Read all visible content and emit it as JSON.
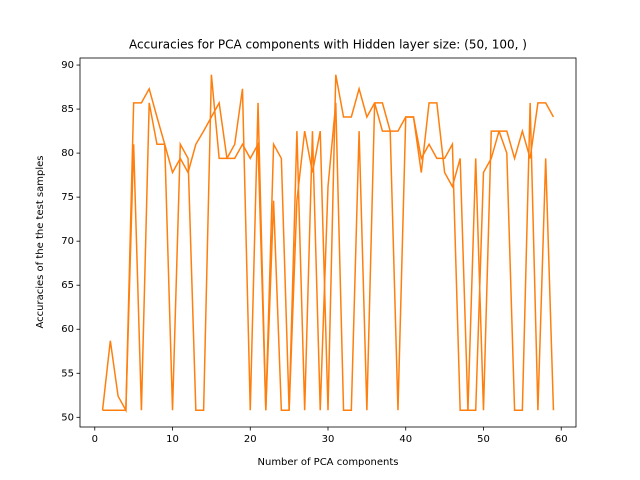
{
  "chart_data": {
    "type": "line",
    "title": "Accuracies for PCA components with Hidden layer size: (50, 100, )",
    "x_label": "Number of PCA components",
    "y_label": "Accuracies of the the test samples",
    "x": [
      1,
      2,
      3,
      4,
      5,
      6,
      7,
      8,
      9,
      10,
      11,
      12,
      13,
      14,
      15,
      16,
      17,
      18,
      19,
      20,
      21,
      22,
      23,
      24,
      25,
      26,
      27,
      28,
      29,
      30,
      31,
      32,
      33,
      34,
      35,
      36,
      37,
      38,
      39,
      40,
      41,
      42,
      43,
      44,
      45,
      46,
      47,
      48,
      49,
      50,
      51,
      52,
      53,
      54,
      55,
      56,
      57,
      58,
      59
    ],
    "series": [
      {
        "color": "#ff7f0e",
        "values": [
          50.8,
          58.7,
          52.4,
          50.8,
          85.7,
          85.7,
          87.3,
          84.1,
          81,
          77.8,
          79.4,
          77.8,
          81,
          82.5,
          84.1,
          85.7,
          79.4,
          79.4,
          81,
          79.4,
          81,
          50.8,
          81,
          79.4,
          50.8,
          74.6,
          82.5,
          77.8,
          82.5,
          50.8,
          88.9,
          84.1,
          84.1,
          87.3,
          84.1,
          85.7,
          85.7,
          82.5,
          82.5,
          84.1,
          84.1,
          77.8,
          85.7,
          85.7,
          77.8,
          76.2,
          79.4,
          50.8,
          50.8,
          77.8,
          79.4,
          82.5,
          82.5,
          79.4,
          82.5,
          79.4,
          85.7,
          85.7,
          84.1
        ]
      },
      {
        "color": "#ff7f0e",
        "values": [
          50.8,
          50.8,
          50.8,
          50.8,
          81,
          50.8,
          85.7,
          81,
          81,
          50.8,
          81,
          79.4,
          50.8,
          50.8,
          88.9,
          79.4,
          79.4,
          81,
          87.3,
          50.8,
          85.7,
          50.8,
          74.6,
          50.8,
          50.8,
          82.5,
          50.8,
          82.5,
          50.8,
          76.2,
          85.7,
          50.8,
          50.8,
          82.5,
          50.8,
          85.7,
          82.5,
          82.5,
          50.8,
          84.1,
          84.1,
          79.4,
          81,
          79.4,
          79.4,
          81,
          50.8,
          50.8,
          79.4,
          50.8,
          82.5,
          82.5,
          80,
          50.8,
          50.8,
          85.7,
          50.8,
          79.4,
          50.8
        ]
      }
    ],
    "xlim": [
      -1.9,
      61.9
    ],
    "xticks": [
      0,
      10,
      20,
      30,
      40,
      50,
      60
    ],
    "ylim": [
      48.9,
      90.8
    ],
    "yticks": [
      50,
      55,
      60,
      65,
      70,
      75,
      80,
      85,
      90
    ]
  }
}
